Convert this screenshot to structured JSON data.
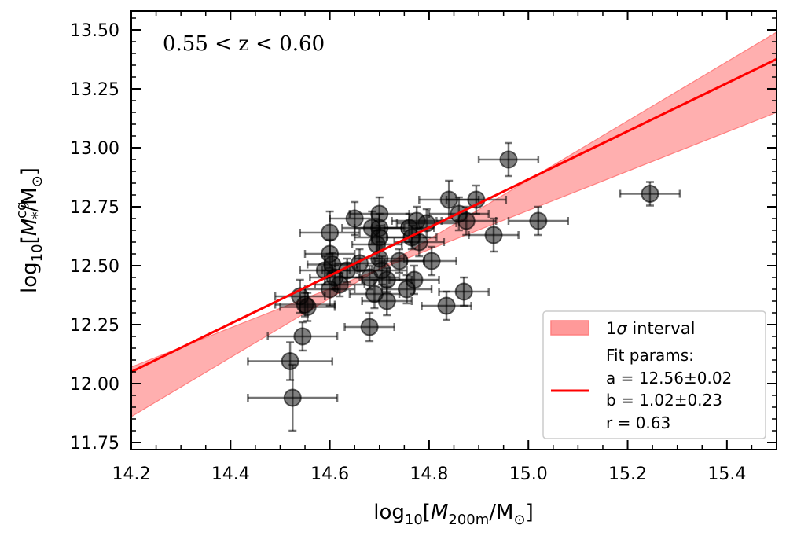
{
  "chart_data": {
    "type": "scatter",
    "annotation": "0.55 < z < 0.60",
    "xlabel": {
      "prefix": "log",
      "sub": "10",
      "open": "[",
      "var": "M",
      "var_sub": "200m",
      "unit": "/M",
      "unit_sub": "⊙",
      "close": "]"
    },
    "ylabel": {
      "prefix": "log",
      "sub": "10",
      "open": "[",
      "var": "M",
      "var_sub": "*",
      "var_sup": "cg",
      "unit": "/M",
      "unit_sub": "⊙",
      "close": "]"
    },
    "xlim": [
      14.2,
      15.5
    ],
    "ylim": [
      11.72,
      13.58
    ],
    "x_ticks": [
      14.2,
      14.4,
      14.6,
      14.8,
      15.0,
      15.2,
      15.4
    ],
    "x_tick_labels": [
      "14.2",
      "14.4",
      "14.6",
      "14.8",
      "15.0",
      "15.2",
      "15.4"
    ],
    "y_ticks": [
      11.75,
      12.0,
      12.25,
      12.5,
      12.75,
      13.0,
      13.25,
      13.5
    ],
    "y_tick_labels": [
      "11.75",
      "12.00",
      "12.25",
      "12.50",
      "12.75",
      "13.00",
      "13.25",
      "13.50"
    ],
    "fit": {
      "x0": 14.7,
      "a": 12.56,
      "b": 1.02,
      "band_low": [
        12.07,
        13.15
      ],
      "band_high": [
        11.86,
        13.49
      ]
    },
    "legend": {
      "band_label_pre": "1",
      "band_label_sigma": "σ",
      "band_label_post": " interval",
      "fit_title": "Fit params:",
      "a_line": "a = 12.56±0.02",
      "b_line": "b = 1.02±0.23",
      "r_line": "r = 0.63"
    },
    "points": [
      [
        14.525,
        11.94,
        0.09,
        0.14
      ],
      [
        14.52,
        12.095,
        0.085,
        0.08
      ],
      [
        14.545,
        12.2,
        0.07,
        0.06
      ],
      [
        14.54,
        12.37,
        0.05,
        0.07
      ],
      [
        14.555,
        12.325,
        0.055,
        0.06
      ],
      [
        14.55,
        12.335,
        0.06,
        0.05
      ],
      [
        14.59,
        12.48,
        0.05,
        0.06
      ],
      [
        14.6,
        12.4,
        0.05,
        0.07
      ],
      [
        14.6,
        12.55,
        0.05,
        0.06
      ],
      [
        14.6,
        12.64,
        0.06,
        0.09
      ],
      [
        14.605,
        12.505,
        0.05,
        0.05
      ],
      [
        14.61,
        12.45,
        0.05,
        0.05
      ],
      [
        14.62,
        12.42,
        0.05,
        0.05
      ],
      [
        14.635,
        12.48,
        0.05,
        0.05
      ],
      [
        14.65,
        12.7,
        0.05,
        0.07
      ],
      [
        14.66,
        12.51,
        0.05,
        0.06
      ],
      [
        14.68,
        12.24,
        0.05,
        0.06
      ],
      [
        14.68,
        12.45,
        0.06,
        0.05
      ],
      [
        14.685,
        12.66,
        0.06,
        0.07
      ],
      [
        14.69,
        12.38,
        0.05,
        0.06
      ],
      [
        14.695,
        12.59,
        0.05,
        0.06
      ],
      [
        14.7,
        12.72,
        0.06,
        0.07
      ],
      [
        14.7,
        12.66,
        0.05,
        0.06
      ],
      [
        14.7,
        12.62,
        0.05,
        0.05
      ],
      [
        14.7,
        12.53,
        0.05,
        0.05
      ],
      [
        14.705,
        12.48,
        0.05,
        0.06
      ],
      [
        14.715,
        12.35,
        0.05,
        0.06
      ],
      [
        14.715,
        12.44,
        0.05,
        0.05
      ],
      [
        14.74,
        12.52,
        0.05,
        0.05
      ],
      [
        14.755,
        12.4,
        0.05,
        0.06
      ],
      [
        14.76,
        12.66,
        0.05,
        0.06
      ],
      [
        14.765,
        12.62,
        0.05,
        0.05
      ],
      [
        14.77,
        12.44,
        0.05,
        0.06
      ],
      [
        14.775,
        12.69,
        0.05,
        0.06
      ],
      [
        14.78,
        12.6,
        0.05,
        0.06
      ],
      [
        14.795,
        12.68,
        0.06,
        0.06
      ],
      [
        14.805,
        12.52,
        0.05,
        0.06
      ],
      [
        14.835,
        12.33,
        0.05,
        0.06
      ],
      [
        14.84,
        12.78,
        0.06,
        0.08
      ],
      [
        14.86,
        12.72,
        0.06,
        0.07
      ],
      [
        14.87,
        12.39,
        0.05,
        0.06
      ],
      [
        14.875,
        12.69,
        0.06,
        0.06
      ],
      [
        14.895,
        12.78,
        0.06,
        0.06
      ],
      [
        14.93,
        12.63,
        0.05,
        0.07
      ],
      [
        14.96,
        12.95,
        0.06,
        0.07
      ],
      [
        15.02,
        12.69,
        0.06,
        0.06
      ],
      [
        15.245,
        12.805,
        0.06,
        0.05
      ]
    ]
  }
}
